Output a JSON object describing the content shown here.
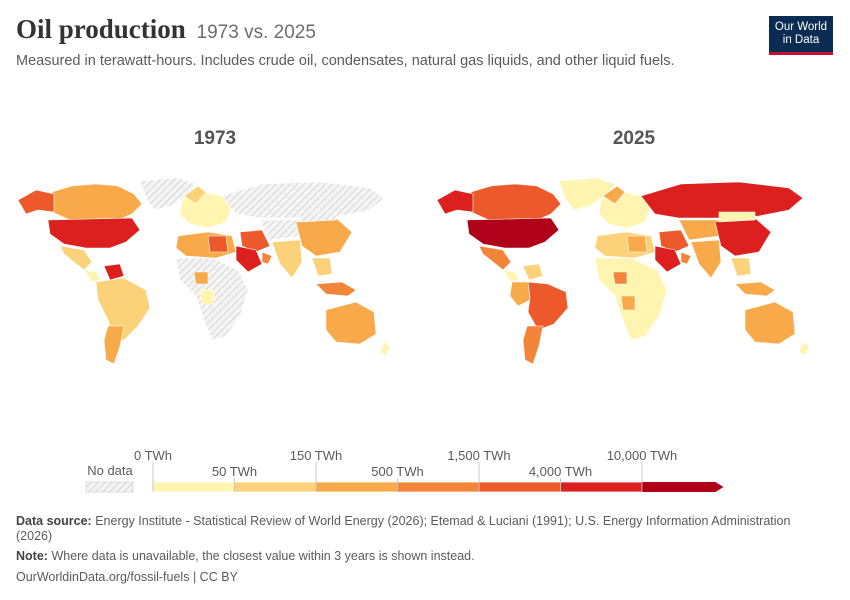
{
  "header": {
    "title": "Oil production",
    "title_suffix": "1973 vs. 2025",
    "subtitle": "Measured in terawatt-hours. Includes crude oil, condensates, natural gas liquids, and other liquid fuels."
  },
  "logo": {
    "line1": "Our World",
    "line2": "in Data",
    "bg_color": "#0b2c52",
    "accent_color": "#c8102e"
  },
  "panels": [
    {
      "year": "1973"
    },
    {
      "year": "2025"
    }
  ],
  "legend": {
    "no_data_label": "No data",
    "bins": [
      {
        "from": "0 TWh",
        "to": "50 TWh",
        "color": "#fff4b0"
      },
      {
        "from": "50 TWh",
        "to": "150 TWh",
        "color": "#fbd27a"
      },
      {
        "from": "150 TWh",
        "to": "500 TWh",
        "color": "#f8a94a"
      },
      {
        "from": "500 TWh",
        "to": "1,500 TWh",
        "color": "#f3853a"
      },
      {
        "from": "1,500 TWh",
        "to": "4,000 TWh",
        "color": "#ec5a2c"
      },
      {
        "from": "4,000 TWh",
        "to": "10,000 TWh",
        "color": "#dc2020"
      },
      {
        "from": "10,000 TWh",
        "to": "",
        "color": "#b0001a"
      }
    ],
    "top_labels": [
      "0 TWh",
      "150 TWh",
      "1,500 TWh",
      "10,000 TWh"
    ],
    "bottom_labels": [
      "50 TWh",
      "500 TWh",
      "4,000 TWh"
    ]
  },
  "footer": {
    "source_label": "Data source:",
    "source_text": "Energy Institute - Statistical Review of World Energy (2026); Etemad & Luciani (1991); U.S. Energy Information Administration (2026)",
    "note_label": "Note:",
    "note_text": "Where data is unavailable, the closest value within 3 years is shown instead.",
    "url": "OurWorldinData.org/fossil-fuels",
    "license": "CC BY"
  }
}
